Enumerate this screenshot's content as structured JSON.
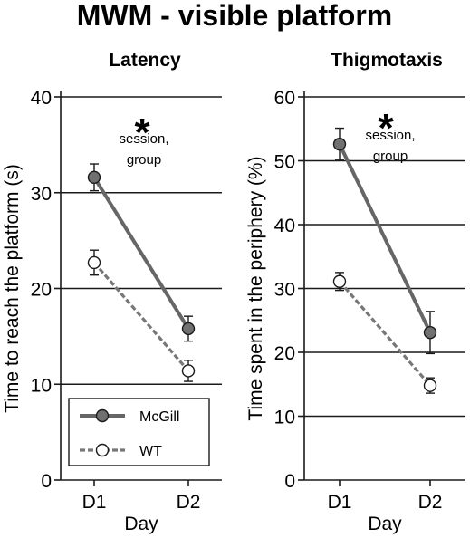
{
  "title": "MWM - visible platform",
  "colors": {
    "mcgill_fill": "#707070",
    "mcgill_line": "#666666",
    "wt_fill": "#ffffff",
    "wt_line": "#777777",
    "axis": "#1a1a1a"
  },
  "chart_data": [
    {
      "type": "line",
      "title": "Latency",
      "xlabel": "Day",
      "ylabel": "Time to reach the platform (s)",
      "categories": [
        "D1",
        "D2"
      ],
      "ylim": [
        0,
        40
      ],
      "yticks": [
        0,
        10,
        20,
        30,
        40
      ],
      "grid": true,
      "annotation": {
        "star": "*",
        "lines": [
          "session,",
          "group"
        ]
      },
      "legend": {
        "position": "bottom-left",
        "entries": [
          "McGill",
          "WT"
        ]
      },
      "series": [
        {
          "name": "McGill",
          "style": "solid",
          "marker": "filled",
          "values": [
            31.6,
            15.8
          ],
          "errors": [
            1.4,
            1.3
          ]
        },
        {
          "name": "WT",
          "style": "dashed",
          "marker": "open",
          "values": [
            22.7,
            11.4
          ],
          "errors": [
            1.3,
            1.1
          ]
        }
      ]
    },
    {
      "type": "line",
      "title": "Thigmotaxis",
      "xlabel": "Day",
      "ylabel": "Time spent in the periphery (%)",
      "categories": [
        "D1",
        "D2"
      ],
      "ylim": [
        0,
        60
      ],
      "yticks": [
        0,
        10,
        20,
        30,
        40,
        50,
        60
      ],
      "grid": true,
      "annotation": {
        "star": "*",
        "lines": [
          "session,",
          "group"
        ]
      },
      "series": [
        {
          "name": "McGill",
          "style": "solid",
          "marker": "filled",
          "values": [
            52.6,
            23.1
          ],
          "errors": [
            2.5,
            3.3
          ]
        },
        {
          "name": "WT",
          "style": "dashed",
          "marker": "open",
          "values": [
            31.1,
            14.8
          ],
          "errors": [
            1.4,
            1.2
          ]
        }
      ]
    }
  ]
}
